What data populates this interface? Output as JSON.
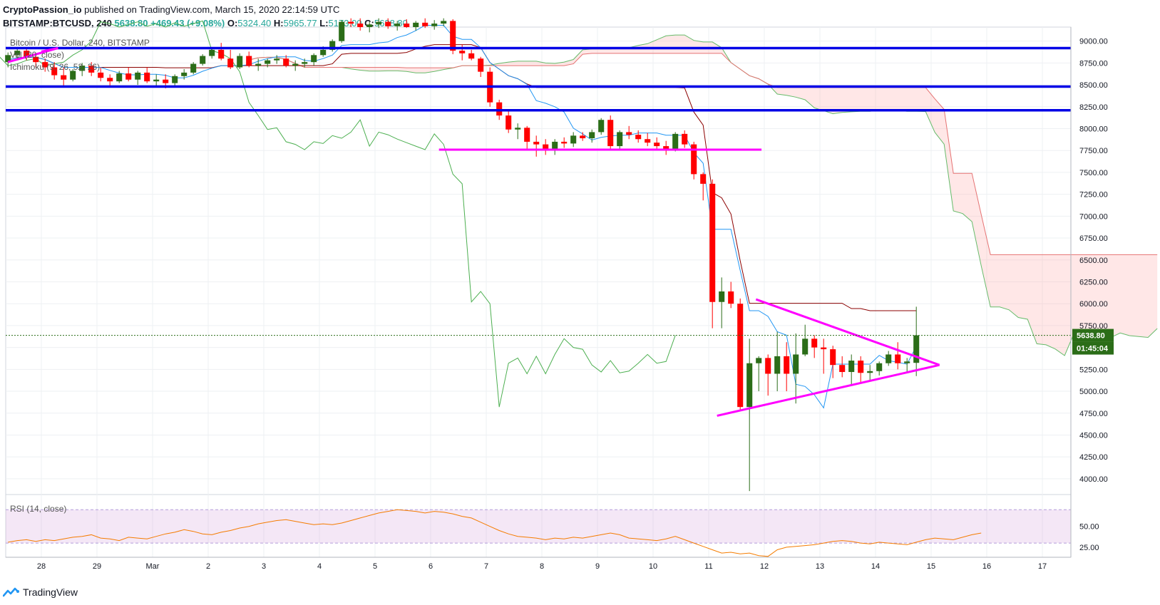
{
  "header": {
    "line1": {
      "author": "CryptoPassion_io",
      "rest": " published on TradingView.com, March 15, 2020 22:14:59 UTC"
    },
    "line2": {
      "symbol": "BITSTAMP:BTCUSD, 240",
      "price": "5638.80",
      "change": "+469.43 (+9.08%)",
      "o_label": "O:",
      "o": "5324.40",
      "h_label": "H:",
      "h": "5965.77",
      "l_label": "L:",
      "l": "5173.00",
      "c_label": "C:",
      "c": "5638.80"
    }
  },
  "legends": {
    "main": "Bitcoin / U.S. Dollar, 240, BITSTAMP",
    "vol": "Vol (20, close)",
    "ichimoku": "Ichimoku (9, 26, 52, 26)",
    "rsi": "RSI (14, close)"
  },
  "footer": {
    "brand": "TradingView"
  },
  "colors": {
    "up": "#2b6d18",
    "down": "#ff0000",
    "hline": "#0000e6",
    "pattern": "#ff00ff",
    "tenkan": "#2196f3",
    "kijun": "#8b0000",
    "lagging": "#4caf50",
    "spanA": "#66bb6a",
    "spanB": "#e57373",
    "cloud": "rgba(255,160,160,0.25)",
    "rsi": "#f57c00",
    "rsi_band": "rgba(206,147,216,0.22)",
    "price_badge": "#2b6d18"
  },
  "chart_data": {
    "type": "candlestick",
    "interval_hours": 4,
    "y_axis": {
      "ticks": [
        9000,
        8750,
        8500,
        8250,
        8000,
        7750,
        7500,
        7250,
        7000,
        6750,
        6500,
        6250,
        6000,
        5750,
        5500,
        5250,
        5000,
        4750,
        4500,
        4250,
        4000
      ],
      "range": [
        3820,
        9160
      ]
    },
    "x_axis": {
      "labels": [
        "28",
        "29",
        "Mar",
        "2",
        "3",
        "4",
        "5",
        "6",
        "7",
        "8",
        "9",
        "10",
        "11",
        "12",
        "13",
        "14",
        "15",
        "16",
        "17"
      ]
    },
    "last_price_label": "5638.80",
    "countdown_label": "01:45:04",
    "horizontal_levels": [
      8920,
      8480,
      8210
    ],
    "support_segment": {
      "from": 7.15,
      "to": 12.95,
      "price": 7760
    },
    "triangle": {
      "apex": [
        16.15,
        5300
      ],
      "upper_start": [
        12.85,
        6050
      ],
      "lower_start": [
        12.15,
        4720
      ]
    },
    "wedge": {
      "points": [
        [
          -0.6,
          8760
        ],
        [
          0.3,
          8920
        ],
        [
          0.0,
          8880
        ]
      ]
    },
    "ohlc": [
      [
        8760,
        8870,
        8700,
        8840
      ],
      [
        8840,
        8920,
        8800,
        8890
      ],
      [
        8890,
        8930,
        8780,
        8820
      ],
      [
        8820,
        8860,
        8700,
        8760
      ],
      [
        8760,
        8800,
        8650,
        8700
      ],
      [
        8700,
        8760,
        8560,
        8610
      ],
      [
        8610,
        8700,
        8470,
        8560
      ],
      [
        8560,
        8680,
        8540,
        8660
      ],
      [
        8660,
        8750,
        8600,
        8720
      ],
      [
        8720,
        8760,
        8600,
        8640
      ],
      [
        8640,
        8700,
        8540,
        8580
      ],
      [
        8580,
        8620,
        8480,
        8540
      ],
      [
        8540,
        8660,
        8520,
        8630
      ],
      [
        8630,
        8700,
        8540,
        8560
      ],
      [
        8560,
        8660,
        8500,
        8640
      ],
      [
        8640,
        8700,
        8520,
        8540
      ],
      [
        8540,
        8620,
        8480,
        8560
      ],
      [
        8560,
        8620,
        8460,
        8520
      ],
      [
        8520,
        8620,
        8480,
        8600
      ],
      [
        8600,
        8680,
        8560,
        8640
      ],
      [
        8640,
        8760,
        8620,
        8740
      ],
      [
        8740,
        8850,
        8720,
        8830
      ],
      [
        8830,
        8920,
        8800,
        8900
      ],
      [
        8900,
        8980,
        8780,
        8800
      ],
      [
        8800,
        8900,
        8680,
        8700
      ],
      [
        8700,
        8860,
        8680,
        8830
      ],
      [
        8830,
        8880,
        8700,
        8720
      ],
      [
        8720,
        8800,
        8660,
        8740
      ],
      [
        8740,
        8800,
        8700,
        8780
      ],
      [
        8780,
        8840,
        8740,
        8800
      ],
      [
        8800,
        8840,
        8700,
        8720
      ],
      [
        8720,
        8780,
        8660,
        8740
      ],
      [
        8740,
        8800,
        8700,
        8760
      ],
      [
        8760,
        8860,
        8720,
        8840
      ],
      [
        8840,
        8940,
        8820,
        8900
      ],
      [
        8900,
        9020,
        8880,
        9000
      ],
      [
        9000,
        9240,
        8980,
        9220
      ],
      [
        9220,
        9260,
        9160,
        9200
      ],
      [
        9200,
        9260,
        9120,
        9160
      ],
      [
        9160,
        9220,
        9100,
        9190
      ],
      [
        9190,
        9260,
        9150,
        9220
      ],
      [
        9220,
        9260,
        9140,
        9170
      ],
      [
        9170,
        9230,
        9120,
        9200
      ],
      [
        9200,
        9250,
        9150,
        9160
      ],
      [
        9160,
        9230,
        9120,
        9210
      ],
      [
        9210,
        9260,
        9150,
        9170
      ],
      [
        9170,
        9240,
        9130,
        9200
      ],
      [
        9200,
        9260,
        9170,
        9230
      ],
      [
        9230,
        9250,
        8850,
        8890
      ],
      [
        8890,
        8960,
        8780,
        8860
      ],
      [
        8860,
        8900,
        8780,
        8800
      ],
      [
        8800,
        8820,
        8590,
        8650
      ],
      [
        8650,
        8700,
        8250,
        8300
      ],
      [
        8300,
        8330,
        8100,
        8150
      ],
      [
        8150,
        8200,
        7950,
        7990
      ],
      [
        7990,
        8060,
        7880,
        8010
      ],
      [
        8010,
        8030,
        7760,
        7850
      ],
      [
        7850,
        7920,
        7680,
        7820
      ],
      [
        7820,
        7880,
        7700,
        7760
      ],
      [
        7760,
        7880,
        7700,
        7850
      ],
      [
        7850,
        7900,
        7780,
        7830
      ],
      [
        7830,
        7960,
        7790,
        7920
      ],
      [
        7920,
        7960,
        7860,
        7890
      ],
      [
        7890,
        7990,
        7840,
        7960
      ],
      [
        7960,
        8120,
        7930,
        8100
      ],
      [
        8100,
        8150,
        7750,
        7800
      ],
      [
        7800,
        7980,
        7760,
        7960
      ],
      [
        7960,
        8030,
        7880,
        7930
      ],
      [
        7930,
        7980,
        7840,
        7880
      ],
      [
        7880,
        7950,
        7800,
        7840
      ],
      [
        7840,
        7900,
        7760,
        7800
      ],
      [
        7800,
        7860,
        7700,
        7760
      ],
      [
        7760,
        7960,
        7740,
        7940
      ],
      [
        7940,
        7980,
        7780,
        7820
      ],
      [
        7820,
        7850,
        7420,
        7480
      ],
      [
        7480,
        7500,
        7180,
        7370
      ],
      [
        7370,
        7420,
        5720,
        6020
      ],
      [
        6020,
        6300,
        5720,
        6140
      ],
      [
        6140,
        6250,
        5950,
        6000
      ],
      [
        6000,
        6060,
        4780,
        4820
      ],
      [
        4820,
        5600,
        3860,
        5320
      ],
      [
        5320,
        5400,
        5000,
        5380
      ],
      [
        5380,
        5420,
        4950,
        5200
      ],
      [
        5200,
        5680,
        5000,
        5400
      ],
      [
        5400,
        5560,
        5000,
        5200
      ],
      [
        5200,
        5660,
        4860,
        5420
      ],
      [
        5420,
        5760,
        5400,
        5600
      ],
      [
        5600,
        5640,
        5380,
        5500
      ],
      [
        5500,
        5600,
        5200,
        5480
      ],
      [
        5480,
        5520,
        5150,
        5300
      ],
      [
        5300,
        5400,
        5160,
        5220
      ],
      [
        5220,
        5420,
        5060,
        5350
      ],
      [
        5350,
        5400,
        5100,
        5210
      ],
      [
        5210,
        5300,
        5120,
        5230
      ],
      [
        5230,
        5340,
        5180,
        5320
      ],
      [
        5320,
        5460,
        5290,
        5420
      ],
      [
        5420,
        5560,
        5250,
        5320
      ],
      [
        5320,
        5380,
        5210,
        5340
      ],
      [
        5324.4,
        5965.77,
        5173,
        5638.8
      ]
    ],
    "ichimoku_params": [
      9,
      26,
      52,
      26
    ],
    "rsi": {
      "ticks": [
        50,
        25
      ],
      "range": [
        13,
        83
      ],
      "bands": [
        70,
        30
      ],
      "values": [
        31,
        33,
        34,
        32,
        34,
        33,
        35,
        37,
        38,
        40,
        36,
        35,
        33,
        37,
        36,
        35,
        38,
        41,
        43,
        46,
        44,
        41,
        40,
        43,
        45,
        48,
        50,
        53,
        55,
        57,
        58,
        56,
        54,
        52,
        53,
        52,
        54,
        57,
        60,
        63,
        66,
        68,
        70,
        69,
        68,
        66,
        68,
        67,
        65,
        62,
        60,
        55,
        50,
        45,
        41,
        38,
        37,
        36,
        34,
        36,
        35,
        37,
        36,
        38,
        40,
        42,
        40,
        36,
        35,
        34,
        33,
        35,
        38,
        34,
        30,
        26,
        22,
        18,
        19,
        17,
        18,
        15,
        14,
        22,
        25,
        26,
        27,
        28,
        30,
        32,
        33,
        32,
        30,
        29,
        31,
        30,
        29,
        28,
        31,
        34,
        36,
        35,
        34,
        37,
        40,
        42
      ]
    }
  }
}
